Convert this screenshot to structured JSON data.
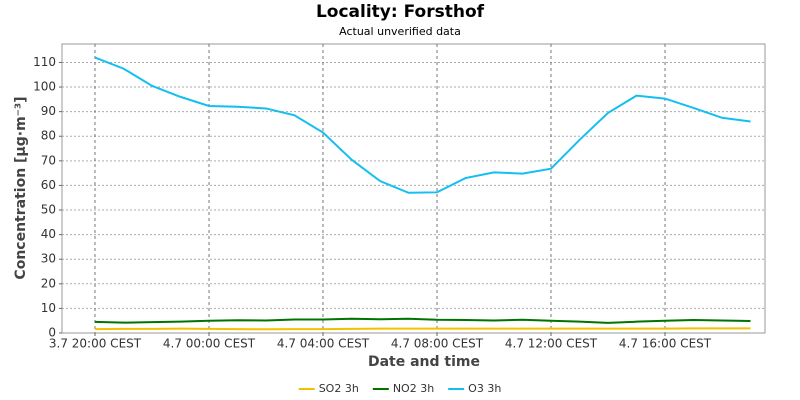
{
  "chart_data": {
    "type": "line",
    "title": "Locality: Forsthof",
    "subtitle": "Actual unverified data",
    "x_label": "Date and time",
    "y_label": "Concentration [µg·m⁻³]",
    "x": [
      "3.7 20:00 CEST",
      "3.7 21:00 CEST",
      "3.7 22:00 CEST",
      "3.7 23:00 CEST",
      "4.7 00:00 CEST",
      "4.7 01:00 CEST",
      "4.7 02:00 CEST",
      "4.7 03:00 CEST",
      "4.7 04:00 CEST",
      "4.7 05:00 CEST",
      "4.7 06:00 CEST",
      "4.7 07:00 CEST",
      "4.7 08:00 CEST",
      "4.7 09:00 CEST",
      "4.7 10:00 CEST",
      "4.7 11:00 CEST",
      "4.7 12:00 CEST",
      "4.7 13:00 CEST",
      "4.7 14:00 CEST",
      "4.7 15:00 CEST",
      "4.7 16:00 CEST",
      "4.7 17:00 CEST",
      "4.7 18:00 CEST",
      "4.7 19:00 CEST"
    ],
    "xticks": [
      "3.7 20:00 CEST",
      "4.7 00:00 CEST",
      "4.7 04:00 CEST",
      "4.7 08:00 CEST",
      "4.7 12:00 CEST",
      "4.7 16:00 CEST"
    ],
    "series": [
      {
        "name": "SO2 3h",
        "color": "#f2c200",
        "values": [
          1.6,
          1.7,
          1.7,
          1.8,
          1.7,
          1.6,
          1.5,
          1.6,
          1.6,
          1.7,
          1.8,
          1.8,
          1.8,
          1.8,
          1.8,
          1.8,
          1.8,
          1.8,
          1.8,
          1.8,
          1.8,
          1.9,
          1.9,
          1.9
        ]
      },
      {
        "name": "NO2 3h",
        "color": "#007400",
        "values": [
          4.5,
          4.2,
          4.4,
          4.6,
          5.0,
          5.2,
          5.1,
          5.5,
          5.5,
          5.8,
          5.6,
          5.8,
          5.4,
          5.3,
          5.1,
          5.4,
          5.0,
          4.6,
          4.1,
          4.6,
          5.0,
          5.3,
          5.1,
          4.9
        ]
      },
      {
        "name": "O3 3h",
        "color": "#14bff0",
        "values": [
          112,
          107.5,
          100.5,
          96,
          92.3,
          92,
          91.3,
          88.5,
          81.5,
          70.5,
          61.8,
          57,
          57.2,
          63,
          65.3,
          64.8,
          66.8,
          78.5,
          89.5,
          96.5,
          95.3,
          91.5,
          87.5,
          86
        ]
      }
    ],
    "ylim": [
      0,
      117.5
    ],
    "yticks": [
      0,
      10,
      20,
      30,
      40,
      50,
      60,
      70,
      80,
      90,
      100,
      110
    ],
    "grid": true
  }
}
